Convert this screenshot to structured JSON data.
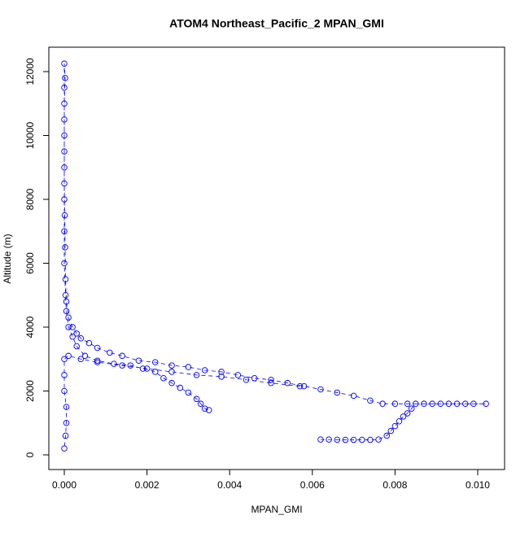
{
  "chart_data": {
    "type": "scatter",
    "title": "ATOM4 Northeast_Pacific_2 MPAN_GMI",
    "x_label": "MPAN_GMI",
    "y_label": "Altitude (m)",
    "color": "blue",
    "xlim": [
      -0.000374,
      0.01065
    ],
    "ylim": [
      -459,
      12764
    ],
    "xticks": [
      {
        "value": 0,
        "label": "0.000"
      },
      {
        "value": 0.002,
        "label": "0.002"
      },
      {
        "value": 0.004,
        "label": "0.004"
      },
      {
        "value": 0.006,
        "label": "0.006"
      },
      {
        "value": 0.008,
        "label": "0.008"
      },
      {
        "value": 0.01,
        "label": "0.010"
      }
    ],
    "yticks": [
      0,
      2000,
      4000,
      6000,
      8000,
      10000,
      12000
    ],
    "x": [
      0.0062,
      0.0064,
      0.0066,
      0.0068,
      0.007,
      0.0072,
      0.0074,
      0.0076,
      0.0078,
      0.0079,
      0.008,
      0.0081,
      0.0082,
      0.0083,
      0.0084,
      0.0085,
      0.0087,
      0.0089,
      0.0091,
      0.0093,
      0.0095,
      0.0097,
      0.0099,
      0.0102,
      0.0083,
      0.008,
      0.0077,
      0.0074,
      0.007,
      0.0066,
      0.0062,
      0.0058,
      0.0054,
      0.005,
      0.0046,
      0.0042,
      0.0038,
      0.0034,
      0.003,
      0.0026,
      0.0022,
      0.0018,
      0.0014,
      0.0011,
      0.0008,
      0.0006,
      0.0004,
      0.0003,
      0.0002,
      0.0001,
      5e-05,
      3e-05,
      2e-05,
      1e-05,
      0,
      0,
      0,
      0,
      0,
      2e-05,
      0,
      0,
      0,
      0,
      0,
      0,
      3e-05,
      5e-05,
      0.0001,
      0.0002,
      0.0003,
      0.0005,
      0.0008,
      0.0012,
      0.0016,
      0.0019,
      0.0022,
      0.0024,
      0.0026,
      0.0028,
      0.003,
      0.0032,
      0.0033,
      0.0034,
      0.0035,
      null,
      0.0057,
      0.005,
      0.0044,
      0.0038,
      0.0032,
      0.0026,
      0.002,
      0.0014,
      0.0008,
      0.0004,
      0.0001,
      0,
      0,
      0,
      5e-05,
      5e-05,
      3e-05,
      0
    ],
    "values": [
      480,
      480,
      475,
      470,
      470,
      470,
      470,
      480,
      600,
      750,
      900,
      1050,
      1200,
      1300,
      1450,
      1600,
      1600,
      1600,
      1600,
      1600,
      1600,
      1600,
      1600,
      1600,
      1600,
      1600,
      1600,
      1700,
      1850,
      1950,
      2050,
      2150,
      2250,
      2350,
      2400,
      2500,
      2600,
      2650,
      2750,
      2800,
      2900,
      2950,
      3100,
      3200,
      3350,
      3500,
      3650,
      3800,
      4000,
      4300,
      4800,
      5500,
      6500,
      7500,
      8500,
      9500,
      10500,
      11500,
      12250,
      11800,
      11000,
      10000,
      9000,
      8000,
      7000,
      6000,
      5000,
      4500,
      4000,
      3700,
      3400,
      3100,
      2950,
      2850,
      2800,
      2700,
      2600,
      2400,
      2250,
      2100,
      1950,
      1750,
      1600,
      1450,
      1400,
      null,
      2150,
      2250,
      2350,
      2450,
      2500,
      2600,
      2700,
      2800,
      2900,
      3000,
      3100,
      3000,
      2500,
      2000,
      1500,
      1000,
      600,
      200
    ]
  }
}
